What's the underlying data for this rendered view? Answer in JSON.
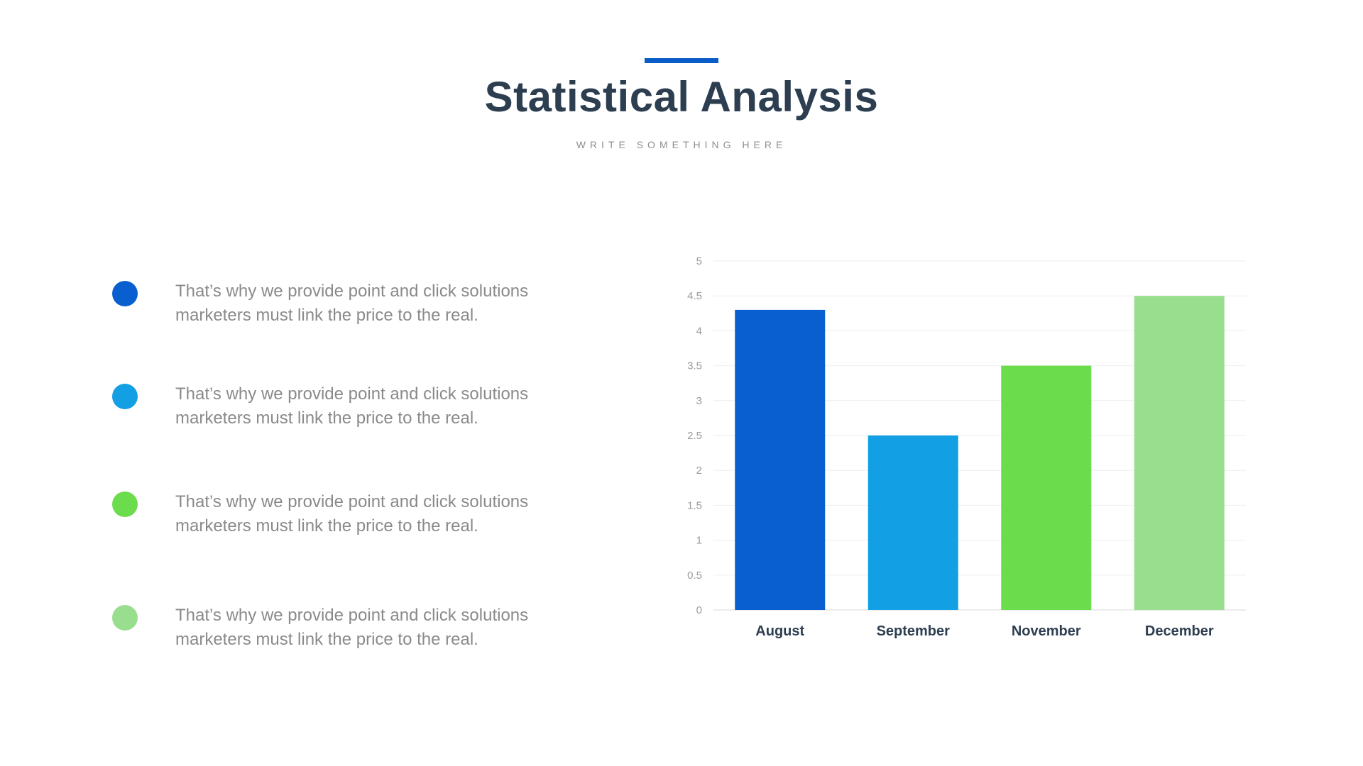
{
  "header": {
    "title": "Statistical Analysis",
    "subtitle": "WRITE SOMETHING HERE",
    "accent_color": "#0a5cc8"
  },
  "bullets": [
    {
      "line1": "That’s why we provide point and click solutions",
      "line2": "marketers must link the price to the real.",
      "color": "#0a5fd0"
    },
    {
      "line1": "That’s why we provide point and click solutions",
      "line2": "marketers must link the price to the real.",
      "color": "#129fe3"
    },
    {
      "line1": "That’s why we provide point and click solutions",
      "line2": "marketers must link the price to the real.",
      "color": "#6bdc4c"
    },
    {
      "line1": "That’s why we provide point and click solutions",
      "line2": "marketers must link the price to the real.",
      "color": "#98de8e"
    }
  ],
  "chart_data": {
    "type": "bar",
    "categories": [
      "August",
      "September",
      "November",
      "December"
    ],
    "values": [
      4.3,
      2.5,
      3.5,
      4.5
    ],
    "colors": [
      "#0a5fd0",
      "#129fe3",
      "#6bdc4c",
      "#98de8e"
    ],
    "ylim": [
      0,
      5
    ],
    "yticks": [
      "0",
      "0.5",
      "1",
      "1.5",
      "2",
      "2.5",
      "3",
      "3.5",
      "4",
      "4.5",
      "5"
    ],
    "grid": true,
    "legend": "none"
  }
}
